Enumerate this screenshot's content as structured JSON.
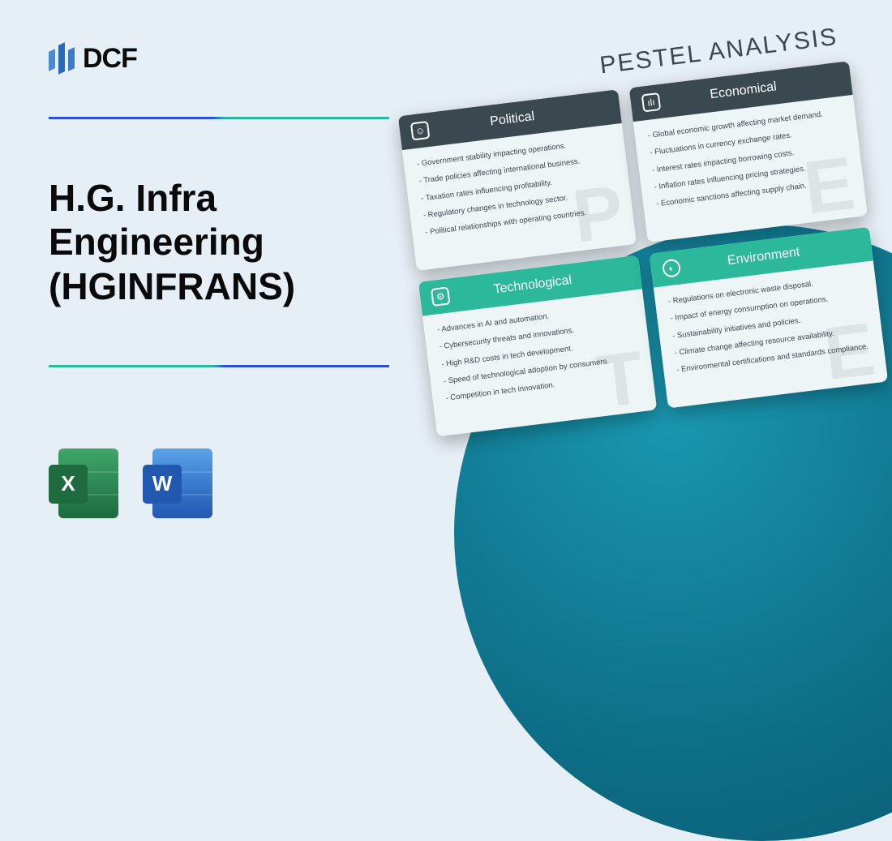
{
  "logo_text": "DCF",
  "title": "H.G. Infra Engineering (HGINFRANS)",
  "apps": {
    "excel": "X",
    "word": "W"
  },
  "pestel_title": "PESTEL ANALYSIS",
  "colors": {
    "page_bg": "#e6eff5",
    "hr_blue": "#2850d8",
    "hr_teal": "#2cb89a",
    "head_dark": "#3a4850",
    "head_teal": "#2cb89a",
    "circle_light": "#1a98b0",
    "circle_dark": "#0a5a70"
  },
  "cards": [
    {
      "name": "Political",
      "head_style": "dark",
      "watermark": "P",
      "icon_glyph": "☺",
      "icon_shape": "square",
      "items": [
        "Government stability impacting operations.",
        "Trade policies affecting international business.",
        "Taxation rates influencing profitability.",
        "Regulatory changes in technology sector.",
        "Political relationships with operating countries."
      ]
    },
    {
      "name": "Economical",
      "head_style": "dark",
      "watermark": "E",
      "icon_glyph": "ılı",
      "icon_shape": "square",
      "items": [
        "Global economic growth affecting market demand.",
        "Fluctuations in currency exchange rates.",
        "Interest rates impacting borrowing costs.",
        "Inflation rates influencing pricing strategies.",
        "Economic sanctions affecting supply chain."
      ]
    },
    {
      "name": "Technological",
      "head_style": "teal",
      "watermark": "T",
      "icon_glyph": "⚙",
      "icon_shape": "square",
      "items": [
        "Advances in AI and automation.",
        "Cybersecurity threats and innovations.",
        "High R&D costs in tech development.",
        "Speed of technological adoption by consumers.",
        "Competition in tech innovation."
      ]
    },
    {
      "name": "Environment",
      "head_style": "teal",
      "watermark": "E",
      "icon_glyph": "◐",
      "icon_shape": "round",
      "items": [
        "Regulations on electronic waste disposal.",
        "Impact of energy consumption on operations.",
        "Sustainability initiatives and policies.",
        "Climate change affecting resource availability.",
        "Environmental certifications and standards compliance."
      ]
    }
  ]
}
